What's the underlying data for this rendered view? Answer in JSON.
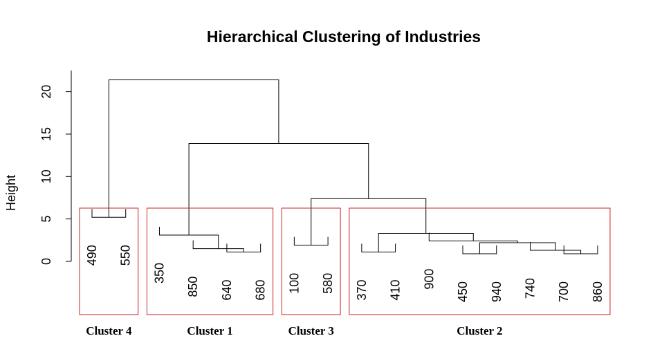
{
  "chart_data": {
    "type": "dendrogram",
    "title": "Hierarchical Clustering of Industries",
    "ylabel": "Height",
    "xlabel": "",
    "ylim": [
      0,
      22
    ],
    "yticks": [
      0,
      5,
      10,
      15,
      20
    ],
    "leaves": [
      "490",
      "550",
      "350",
      "850",
      "640",
      "680",
      "100",
      "580",
      "370",
      "410",
      "900",
      "450",
      "940",
      "740",
      "700",
      "860"
    ],
    "merges": [
      {
        "left": "L:490",
        "right": "L:550",
        "height": 5.2
      },
      {
        "left": "L:640",
        "right": "L:680",
        "height": 1.1
      },
      {
        "left": "L:850",
        "right": "N:1",
        "height": 1.5
      },
      {
        "left": "L:350",
        "right": "N:2",
        "height": 3.1
      },
      {
        "left": "L:100",
        "right": "L:580",
        "height": 1.9
      },
      {
        "left": "L:370",
        "right": "L:410",
        "height": 1.1
      },
      {
        "left": "L:450",
        "right": "L:940",
        "height": 0.9
      },
      {
        "left": "L:700",
        "right": "L:860",
        "height": 0.9
      },
      {
        "left": "L:740",
        "right": "N:7",
        "height": 1.3
      },
      {
        "left": "N:6",
        "right": "N:8",
        "height": 2.2
      },
      {
        "left": "L:900",
        "right": "N:9",
        "height": 2.4
      },
      {
        "left": "N:5",
        "right": "N:10",
        "height": 3.3
      },
      {
        "left": "N:4",
        "right": "N:11",
        "height": 7.4
      },
      {
        "left": "N:3",
        "right": "N:12",
        "height": 13.9
      },
      {
        "left": "N:0",
        "right": "N:13",
        "height": 21.4
      }
    ],
    "clusters": [
      {
        "label": "Cluster 4",
        "first": 0,
        "last": 1
      },
      {
        "label": "Cluster 1",
        "first": 2,
        "last": 5
      },
      {
        "label": "Cluster 3",
        "first": 6,
        "last": 7
      },
      {
        "label": "Cluster 2",
        "first": 8,
        "last": 15
      }
    ],
    "cluster_box_color": "#cc2222"
  }
}
